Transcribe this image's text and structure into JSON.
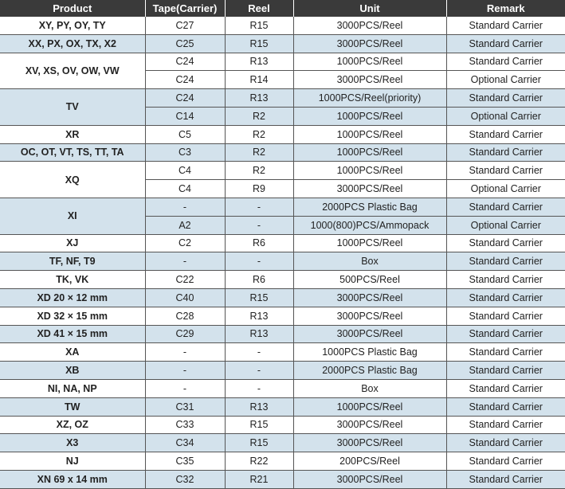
{
  "table": {
    "headers": [
      "Product",
      "Tape(Carrier)",
      "Reel",
      "Unit",
      "Remark"
    ],
    "groups": [
      {
        "product": "XY, PY, OY, TY",
        "rows": [
          [
            "C27",
            "R15",
            "3000PCS/Reel",
            "Standard Carrier"
          ]
        ]
      },
      {
        "product": "XX, PX, OX, TX, X2",
        "rows": [
          [
            "C25",
            "R15",
            "3000PCS/Reel",
            "Standard Carrier"
          ]
        ]
      },
      {
        "product": "XV, XS, OV, OW, VW",
        "rows": [
          [
            "C24",
            "R13",
            "1000PCS/Reel",
            "Standard Carrier"
          ],
          [
            "C24",
            "R14",
            "3000PCS/Reel",
            "Optional Carrier"
          ]
        ]
      },
      {
        "product": "TV",
        "rows": [
          [
            "C24",
            "R13",
            "1000PCS/Reel(priority)",
            "Standard Carrier"
          ],
          [
            "C14",
            "R2",
            "1000PCS/Reel",
            "Optional Carrier"
          ]
        ]
      },
      {
        "product": "XR",
        "rows": [
          [
            "C5",
            "R2",
            "1000PCS/Reel",
            "Standard Carrier"
          ]
        ]
      },
      {
        "product": "OC, OT, VT,  TS, TT, TA",
        "rows": [
          [
            "C3",
            "R2",
            "1000PCS/Reel",
            "Standard Carrier"
          ]
        ]
      },
      {
        "product": "XQ",
        "rows": [
          [
            "C4",
            "R2",
            "1000PCS/Reel",
            "Standard Carrier"
          ],
          [
            "C4",
            "R9",
            "3000PCS/Reel",
            "Optional Carrier"
          ]
        ]
      },
      {
        "product": "XI",
        "rows": [
          [
            "-",
            "-",
            "2000PCS Plastic Bag",
            "Standard Carrier"
          ],
          [
            "A2",
            "-",
            "1000(800)PCS/Ammopack",
            "Optional Carrier"
          ]
        ]
      },
      {
        "product": "XJ",
        "rows": [
          [
            "C2",
            "R6",
            "1000PCS/Reel",
            "Standard Carrier"
          ]
        ]
      },
      {
        "product": "TF, NF, T9",
        "rows": [
          [
            "-",
            "-",
            "Box",
            "Standard Carrier"
          ]
        ]
      },
      {
        "product": "TK, VK",
        "rows": [
          [
            "C22",
            "R6",
            "500PCS/Reel",
            "Standard Carrier"
          ]
        ]
      },
      {
        "product": "XD 20 × 12 mm",
        "rows": [
          [
            "C40",
            "R15",
            "3000PCS/Reel",
            "Standard Carrier"
          ]
        ]
      },
      {
        "product": "XD 32 × 15 mm",
        "rows": [
          [
            "C28",
            "R13",
            "3000PCS/Reel",
            "Standard Carrier"
          ]
        ]
      },
      {
        "product": "XD 41 × 15 mm",
        "rows": [
          [
            "C29",
            "R13",
            "3000PCS/Reel",
            "Standard Carrier"
          ]
        ]
      },
      {
        "product": "XA",
        "rows": [
          [
            "-",
            "-",
            "1000PCS Plastic Bag",
            "Standard Carrier"
          ]
        ]
      },
      {
        "product": "XB",
        "rows": [
          [
            "-",
            "-",
            "2000PCS Plastic Bag",
            "Standard Carrier"
          ]
        ]
      },
      {
        "product": "NI, NA, NP",
        "rows": [
          [
            "-",
            "-",
            "Box",
            "Standard Carrier"
          ]
        ]
      },
      {
        "product": "TW",
        "rows": [
          [
            "C31",
            "R13",
            "1000PCS/Reel",
            "Standard Carrier"
          ]
        ]
      },
      {
        "product": "XZ, OZ",
        "rows": [
          [
            "C33",
            "R15",
            "3000PCS/Reel",
            "Standard Carrier"
          ]
        ]
      },
      {
        "product": "X3",
        "rows": [
          [
            "C34",
            "R15",
            "3000PCS/Reel",
            "Standard Carrier"
          ]
        ]
      },
      {
        "product": "NJ",
        "rows": [
          [
            "C35",
            "R22",
            "200PCS/Reel",
            "Standard Carrier"
          ]
        ]
      },
      {
        "product": "XN 69 x 14 mm",
        "rows": [
          [
            "C32",
            "R21",
            "3000PCS/Reel",
            "Standard Carrier"
          ]
        ]
      }
    ]
  },
  "colors": {
    "header_bg": "#3a3a3a",
    "stripe": "#d3e2ec"
  }
}
